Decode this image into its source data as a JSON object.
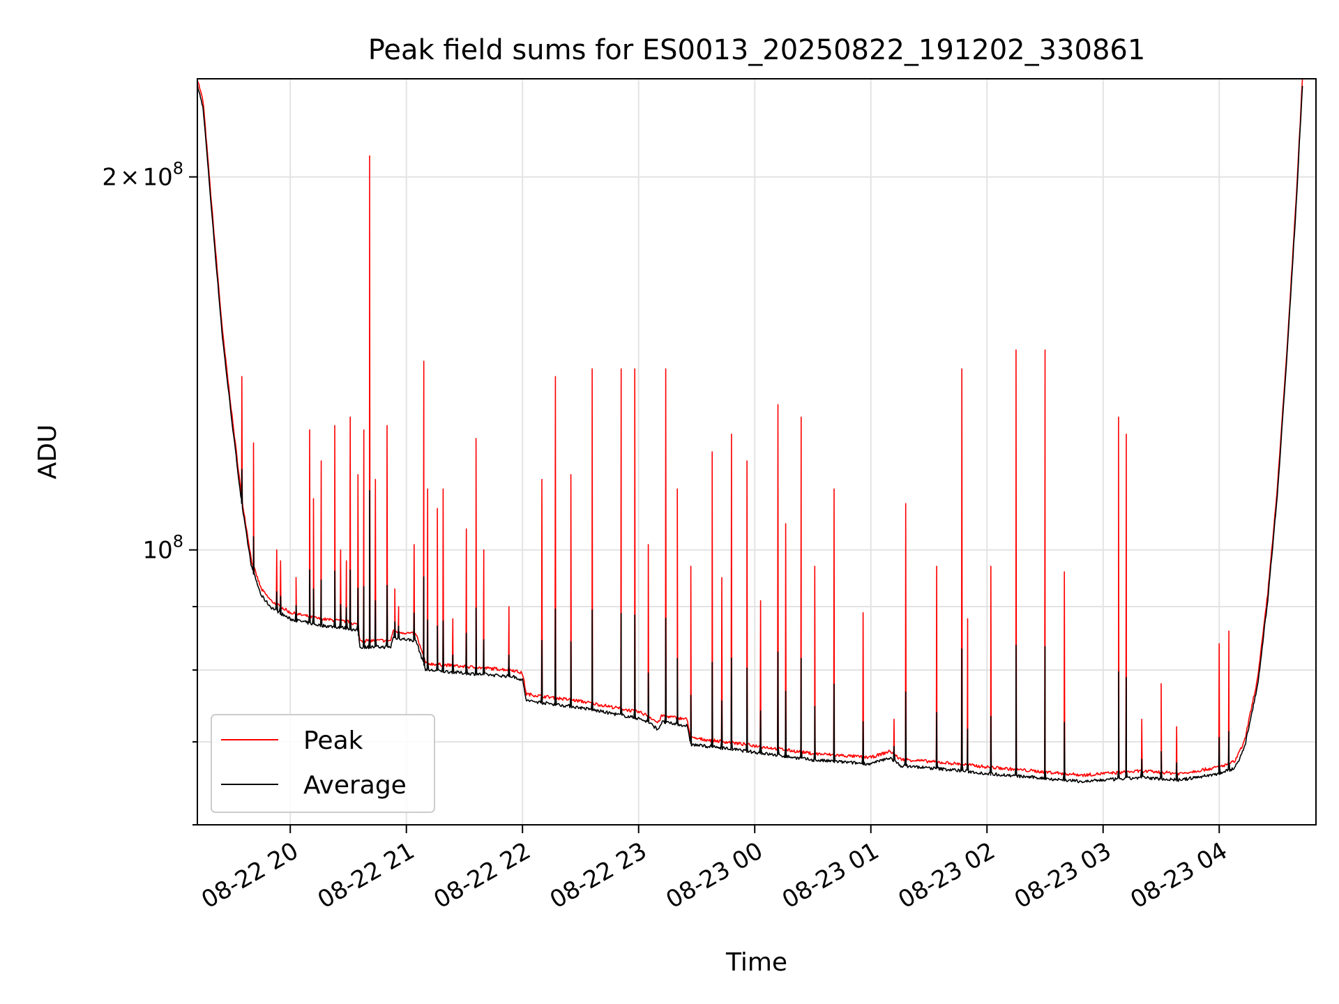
{
  "chart_data": {
    "type": "line",
    "title": "Peak field sums for ES0013_20250822_191202_330861",
    "xlabel": "Time",
    "ylabel": "ADU",
    "y_scale": "log",
    "grid": true,
    "legend_position": "lower-left",
    "xlim": [
      "2025-08-22 19:12",
      "2025-08-23 04:50"
    ],
    "ylim": [
      60000000,
      240000000
    ],
    "x_ticks": [
      {
        "value": "2025-08-22 20:00",
        "label": "08-22 20"
      },
      {
        "value": "2025-08-22 21:00",
        "label": "08-22 21"
      },
      {
        "value": "2025-08-22 22:00",
        "label": "08-22 22"
      },
      {
        "value": "2025-08-22 23:00",
        "label": "08-22 23"
      },
      {
        "value": "2025-08-23 00:00",
        "label": "08-23 00"
      },
      {
        "value": "2025-08-23 01:00",
        "label": "08-23 01"
      },
      {
        "value": "2025-08-23 02:00",
        "label": "08-23 02"
      },
      {
        "value": "2025-08-23 03:00",
        "label": "08-23 03"
      },
      {
        "value": "2025-08-23 04:00",
        "label": "08-23 04"
      }
    ],
    "y_ticks": [
      {
        "value": 200000000,
        "mantissa": "2",
        "times": "×",
        "base": "10",
        "exp": "8"
      },
      {
        "value": 100000000,
        "mantissa": "",
        "times": "",
        "base": "10",
        "exp": "8"
      }
    ],
    "y_minor_ticks": [
      60000000,
      70000000,
      80000000,
      90000000
    ],
    "series": [
      {
        "name": "Peak",
        "color": "#ff0000",
        "baseline": [
          [
            "2025-08-22 19:12",
            240000000
          ],
          [
            "2025-08-22 19:15",
            230000000
          ],
          [
            "2025-08-22 19:20",
            185000000
          ],
          [
            "2025-08-22 19:25",
            150000000
          ],
          [
            "2025-08-22 19:30",
            128000000
          ],
          [
            "2025-08-22 19:35",
            110000000
          ],
          [
            "2025-08-22 19:40",
            98000000
          ],
          [
            "2025-08-22 19:45",
            93000000
          ],
          [
            "2025-08-22 19:50",
            91000000
          ],
          [
            "2025-08-22 20:00",
            89000000
          ],
          [
            "2025-08-22 20:15",
            88000000
          ],
          [
            "2025-08-22 20:30",
            87500000
          ],
          [
            "2025-08-22 20:35",
            87000000
          ],
          [
            "2025-08-22 20:36",
            84500000
          ],
          [
            "2025-08-22 20:52",
            84500000
          ],
          [
            "2025-08-22 20:53",
            86000000
          ],
          [
            "2025-08-22 21:05",
            85500000
          ],
          [
            "2025-08-22 21:10",
            81000000
          ],
          [
            "2025-08-22 21:30",
            80500000
          ],
          [
            "2025-08-22 21:55",
            80000000
          ],
          [
            "2025-08-22 22:00",
            79500000
          ],
          [
            "2025-08-22 22:02",
            76500000
          ],
          [
            "2025-08-22 22:30",
            75500000
          ],
          [
            "2025-08-22 23:00",
            74000000
          ],
          [
            "2025-08-22 23:05",
            73500000
          ],
          [
            "2025-08-22 23:10",
            72500000
          ],
          [
            "2025-08-22 23:12",
            73500000
          ],
          [
            "2025-08-22 23:25",
            73000000
          ],
          [
            "2025-08-22 23:27",
            70500000
          ],
          [
            "2025-08-22 23:45",
            70000000
          ],
          [
            "2025-08-23 00:00",
            69500000
          ],
          [
            "2025-08-23 00:30",
            68500000
          ],
          [
            "2025-08-23 01:00",
            68000000
          ],
          [
            "2025-08-23 01:10",
            68800000
          ],
          [
            "2025-08-23 01:15",
            67800000
          ],
          [
            "2025-08-23 01:45",
            67200000
          ],
          [
            "2025-08-23 02:00",
            66800000
          ],
          [
            "2025-08-23 02:30",
            66200000
          ],
          [
            "2025-08-23 02:50",
            65800000
          ],
          [
            "2025-08-23 03:00",
            66000000
          ],
          [
            "2025-08-23 03:20",
            66300000
          ],
          [
            "2025-08-23 03:40",
            66000000
          ],
          [
            "2025-08-23 04:00",
            66800000
          ],
          [
            "2025-08-23 04:08",
            67500000
          ],
          [
            "2025-08-23 04:13",
            70000000
          ],
          [
            "2025-08-23 04:20",
            79000000
          ],
          [
            "2025-08-23 04:25",
            92000000
          ],
          [
            "2025-08-23 04:30",
            112000000
          ],
          [
            "2025-08-23 04:35",
            145000000
          ],
          [
            "2025-08-23 04:40",
            195000000
          ],
          [
            "2025-08-23 04:43",
            240000000
          ]
        ],
        "spikes": [
          [
            "2025-08-22 19:35",
            138000000
          ],
          [
            "2025-08-22 19:41",
            122000000
          ],
          [
            "2025-08-22 19:53",
            100000000
          ],
          [
            "2025-08-22 19:55",
            98000000
          ],
          [
            "2025-08-22 20:03",
            95000000
          ],
          [
            "2025-08-22 20:10",
            125000000
          ],
          [
            "2025-08-22 20:12",
            110000000
          ],
          [
            "2025-08-22 20:16",
            118000000
          ],
          [
            "2025-08-22 20:23",
            126000000
          ],
          [
            "2025-08-22 20:26",
            100000000
          ],
          [
            "2025-08-22 20:29",
            98000000
          ],
          [
            "2025-08-22 20:31",
            128000000
          ],
          [
            "2025-08-22 20:35",
            115000000
          ],
          [
            "2025-08-22 20:38",
            125000000
          ],
          [
            "2025-08-22 20:41",
            208000000
          ],
          [
            "2025-08-22 20:44",
            114000000
          ],
          [
            "2025-08-22 20:50",
            126000000
          ],
          [
            "2025-08-22 20:54",
            93000000
          ],
          [
            "2025-08-22 20:56",
            90000000
          ],
          [
            "2025-08-22 21:04",
            101000000
          ],
          [
            "2025-08-22 21:09",
            142000000
          ],
          [
            "2025-08-22 21:11",
            112000000
          ],
          [
            "2025-08-22 21:16",
            108000000
          ],
          [
            "2025-08-22 21:19",
            112000000
          ],
          [
            "2025-08-22 21:24",
            88000000
          ],
          [
            "2025-08-22 21:31",
            104000000
          ],
          [
            "2025-08-22 21:36",
            123000000
          ],
          [
            "2025-08-22 21:40",
            100000000
          ],
          [
            "2025-08-22 21:53",
            90000000
          ],
          [
            "2025-08-22 22:10",
            114000000
          ],
          [
            "2025-08-22 22:17",
            138000000
          ],
          [
            "2025-08-22 22:25",
            115000000
          ],
          [
            "2025-08-22 22:36",
            140000000
          ],
          [
            "2025-08-22 22:51",
            140000000
          ],
          [
            "2025-08-22 22:58",
            140000000
          ],
          [
            "2025-08-22 23:05",
            101000000
          ],
          [
            "2025-08-22 23:14",
            140000000
          ],
          [
            "2025-08-22 23:20",
            112000000
          ],
          [
            "2025-08-22 23:27",
            97000000
          ],
          [
            "2025-08-22 23:38",
            120000000
          ],
          [
            "2025-08-22 23:43",
            95000000
          ],
          [
            "2025-08-22 23:48",
            124000000
          ],
          [
            "2025-08-22 23:56",
            118000000
          ],
          [
            "2025-08-23 00:03",
            91000000
          ],
          [
            "2025-08-23 00:12",
            131000000
          ],
          [
            "2025-08-23 00:16",
            105000000
          ],
          [
            "2025-08-23 00:24",
            128000000
          ],
          [
            "2025-08-23 00:31",
            97000000
          ],
          [
            "2025-08-23 00:41",
            112000000
          ],
          [
            "2025-08-23 00:56",
            89000000
          ],
          [
            "2025-08-23 01:12",
            73000000
          ],
          [
            "2025-08-23 01:18",
            109000000
          ],
          [
            "2025-08-23 01:34",
            97000000
          ],
          [
            "2025-08-23 01:47",
            140000000
          ],
          [
            "2025-08-23 01:50",
            88000000
          ],
          [
            "2025-08-23 02:02",
            97000000
          ],
          [
            "2025-08-23 02:15",
            145000000
          ],
          [
            "2025-08-23 02:30",
            145000000
          ],
          [
            "2025-08-23 02:40",
            96000000
          ],
          [
            "2025-08-23 03:08",
            128000000
          ],
          [
            "2025-08-23 03:12",
            124000000
          ],
          [
            "2025-08-23 03:20",
            73000000
          ],
          [
            "2025-08-23 03:30",
            78000000
          ],
          [
            "2025-08-23 03:38",
            72000000
          ],
          [
            "2025-08-23 04:00",
            84000000
          ],
          [
            "2025-08-23 04:05",
            86000000
          ]
        ]
      },
      {
        "name": "Average",
        "color": "#000000"
      }
    ]
  }
}
